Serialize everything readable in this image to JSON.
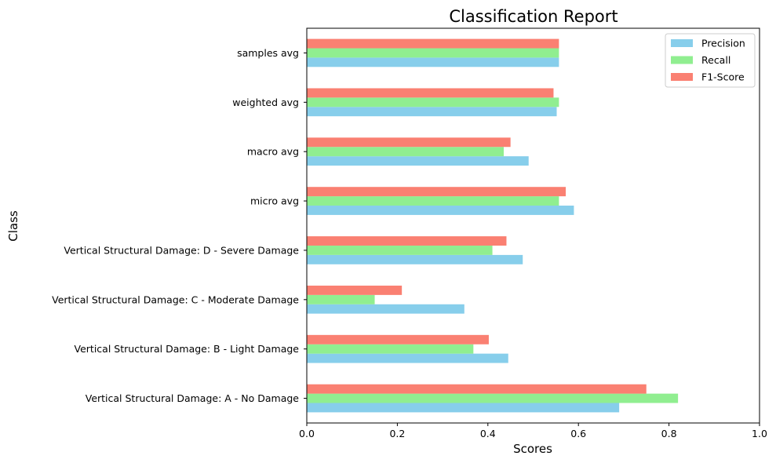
{
  "chart_data": {
    "type": "bar",
    "orientation": "horizontal",
    "title": "Classification Report",
    "xlabel": "Scores",
    "ylabel": "Class",
    "xlim": [
      0,
      1.0
    ],
    "xticks": [
      "0.0",
      "0.2",
      "0.4",
      "0.6",
      "0.8",
      "1.0"
    ],
    "categories": [
      "Vertical Structural Damage: A - No Damage",
      "Vertical Structural Damage: B - Light Damage",
      "Vertical Structural Damage: C - Moderate Damage",
      "Vertical Structural Damage: D - Severe Damage",
      "micro avg",
      "macro avg",
      "weighted avg",
      "samples avg"
    ],
    "series": [
      {
        "name": "Precision",
        "color": "#87ceeb",
        "values": [
          0.69,
          0.445,
          0.348,
          0.477,
          0.59,
          0.49,
          0.552,
          0.557
        ]
      },
      {
        "name": "Recall",
        "color": "#90ee90",
        "values": [
          0.82,
          0.368,
          0.15,
          0.41,
          0.557,
          0.435,
          0.557,
          0.557
        ]
      },
      {
        "name": "F1-Score",
        "color": "#fa8072",
        "values": [
          0.75,
          0.402,
          0.21,
          0.441,
          0.572,
          0.45,
          0.545,
          0.557
        ]
      }
    ],
    "legend": "top-right",
    "grid": false
  }
}
